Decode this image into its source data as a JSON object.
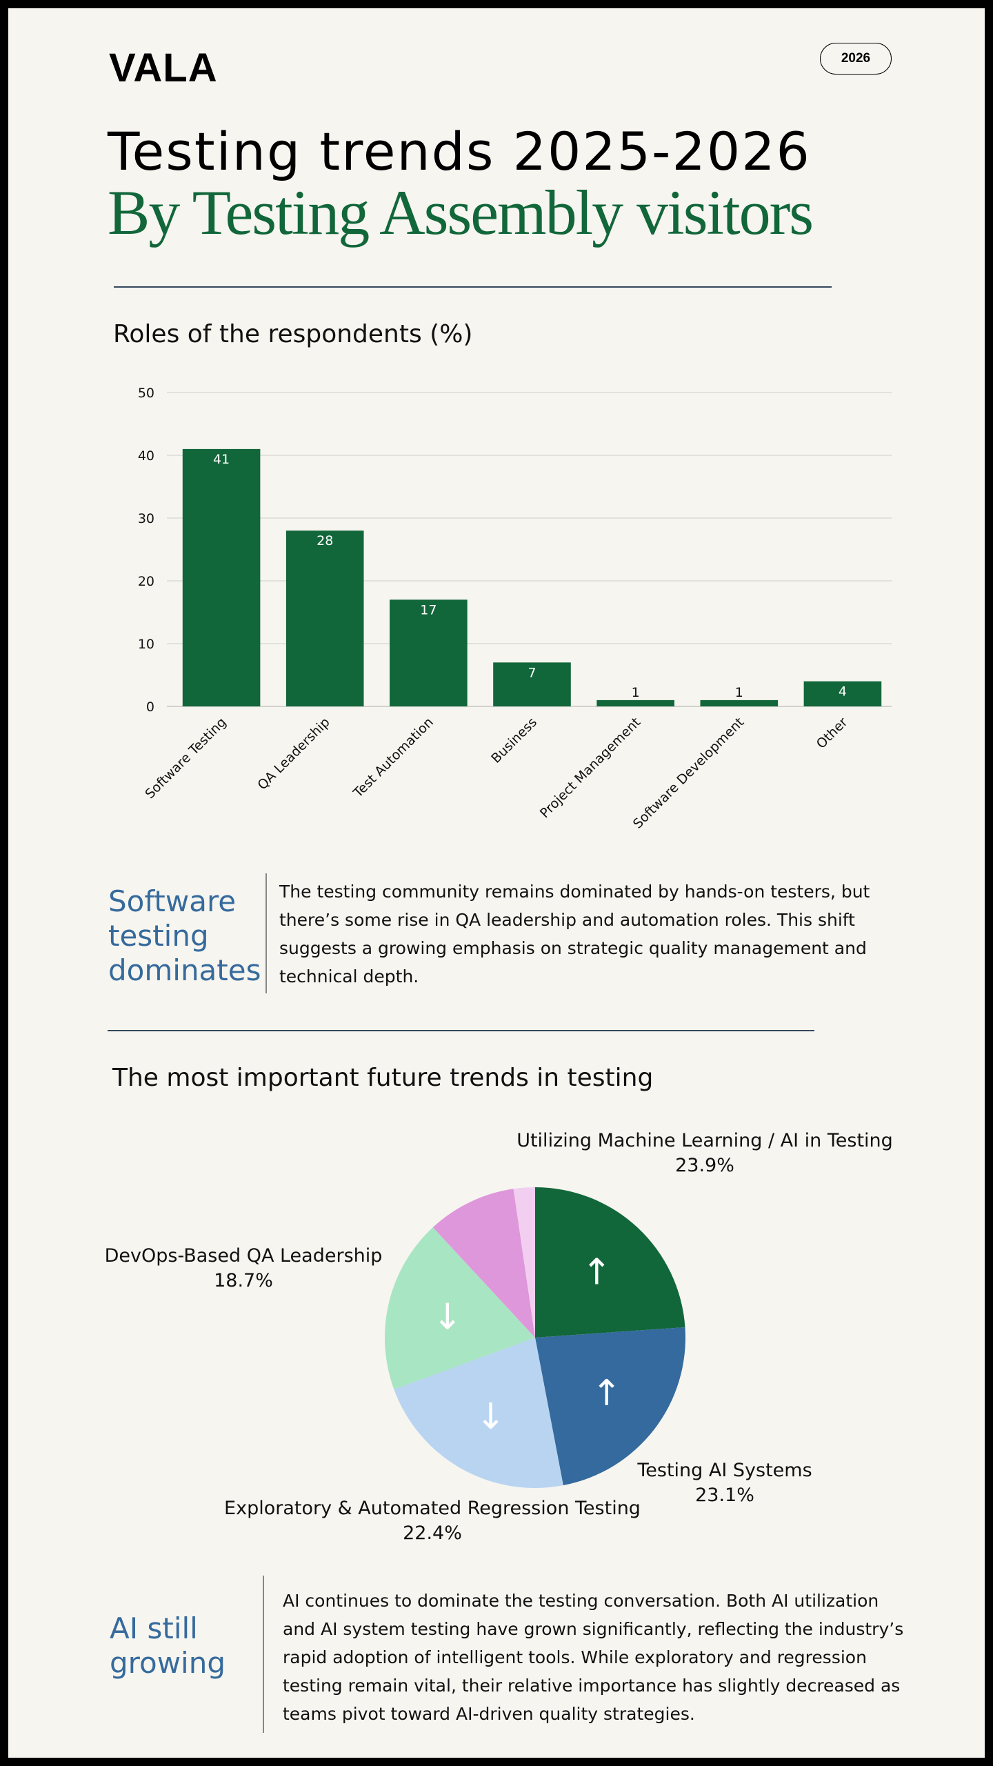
{
  "header": {
    "logo": "VALA",
    "badge": "2026",
    "title_line1": "Testing trends 2025-2026",
    "title_line2": "By Testing Assembly visitors"
  },
  "section1": {
    "title": "Roles of the respondents (%)"
  },
  "callout1": {
    "heading_lines": [
      "Software",
      "testing",
      "dominates"
    ],
    "body": "The testing community remains dominated by hands-on testers, but there’s some rise in QA leadership and automation roles. This shift suggests a growing emphasis on strategic quality management and technical depth."
  },
  "section2": {
    "title": "The most important future trends in testing"
  },
  "callout2": {
    "heading_lines": [
      "AI still",
      "growing"
    ],
    "body": "AI continues to dominate the testing conversation. Both AI utilization and AI system testing have grown significantly, reflecting the industry’s rapid adoption of intelligent tools. While exploratory and regression testing remain vital, their relative importance has slightly decreased as teams pivot toward AI-driven quality strategies."
  },
  "colors": {
    "green_dark": "#12673a",
    "blue_dark": "#346a9d",
    "blue_light": "#b8d4f1",
    "green_light": "#a8e5c2",
    "pink": "#df97dc",
    "pink_light": "#f2cff0",
    "callout_blue": "#366a9c",
    "background": "#f6f5f0"
  },
  "chart_data": [
    {
      "type": "bar",
      "title": "Roles of the respondents (%)",
      "categories": [
        "Software Testing",
        "QA Leadership",
        "Test Automation",
        "Business",
        "Project Management",
        "Software Development",
        "Other"
      ],
      "values": [
        41,
        28,
        17,
        7,
        1,
        1,
        4
      ],
      "data_labels": [
        "41",
        "28",
        "17",
        "7",
        "1",
        "1",
        "4"
      ],
      "ylim": [
        0,
        50
      ],
      "yticks": [
        0,
        10,
        20,
        30,
        40,
        50
      ],
      "grid": true,
      "color": "#12673a"
    },
    {
      "type": "pie",
      "title": "The most important future trends in testing",
      "slices": [
        {
          "label": "Utilizing Machine Learning / AI in Testing",
          "value": 23.9,
          "value_label": "23.9%",
          "color": "#12673a",
          "trend": "↑"
        },
        {
          "label": "Testing AI Systems",
          "value": 23.1,
          "value_label": "23.1%",
          "color": "#346a9d",
          "trend": "↑"
        },
        {
          "label": "Exploratory & Automated Regression Testing",
          "value": 22.4,
          "value_label": "22.4%",
          "color": "#b8d4f1",
          "trend": "↓"
        },
        {
          "label": "DevOps-Based QA Leadership",
          "value": 18.7,
          "value_label": "18.7%",
          "color": "#a8e5c2",
          "trend": "↓"
        },
        {
          "label": "",
          "value": 9.6,
          "value_label": "",
          "color": "#df97dc",
          "trend": ""
        },
        {
          "label": "",
          "value": 2.3,
          "value_label": "",
          "color": "#f2cff0",
          "trend": ""
        }
      ]
    }
  ]
}
